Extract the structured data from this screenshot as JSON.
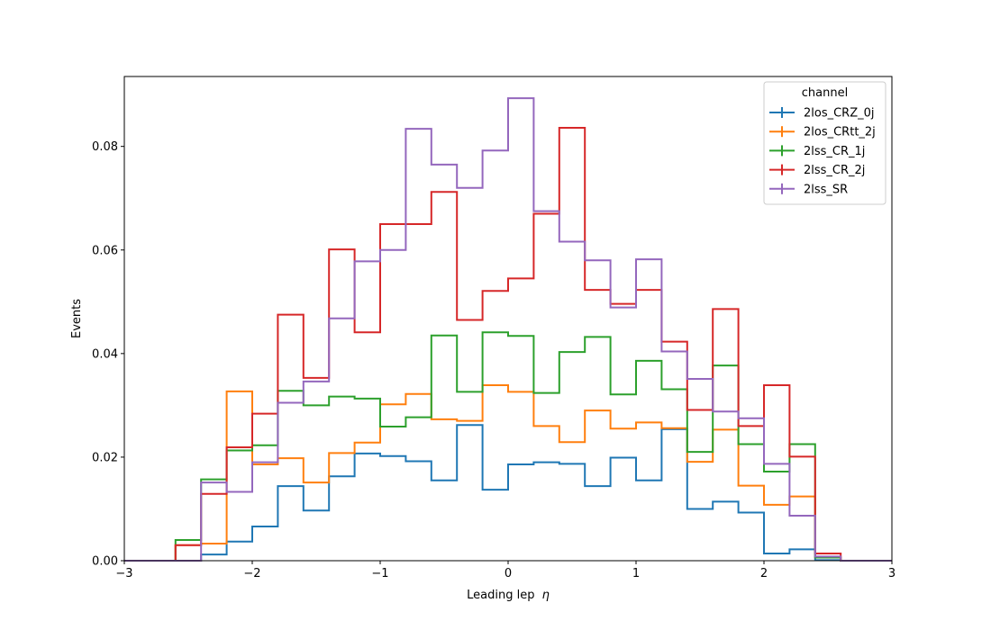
{
  "chart_data": {
    "type": "histogram-step",
    "title": "",
    "xlabel": "Leading lep",
    "xlabel_symbol": "η",
    "ylabel": "Events",
    "xlim": [
      -3,
      3
    ],
    "ylim": [
      0,
      0.0935
    ],
    "xticks": [
      -3,
      -2,
      -1,
      0,
      1,
      2,
      3
    ],
    "xtick_labels": [
      "−3",
      "−2",
      "−1",
      "0",
      "1",
      "2",
      "3"
    ],
    "yticks": [
      0.0,
      0.02,
      0.04,
      0.06,
      0.08
    ],
    "ytick_labels": [
      "0.00",
      "0.02",
      "0.04",
      "0.06",
      "0.08"
    ],
    "grid": false,
    "legend": {
      "title": "channel",
      "placement": "top-right"
    },
    "bin_edges": [
      -3.0,
      -2.8,
      -2.6,
      -2.4,
      -2.2,
      -2.0,
      -1.8,
      -1.6,
      -1.4,
      -1.2,
      -1.0,
      -0.8,
      -0.6,
      -0.4,
      -0.2,
      0.0,
      0.2,
      0.4,
      0.6,
      0.8,
      1.0,
      1.2,
      1.4,
      1.6,
      1.8,
      2.0,
      2.2,
      2.4,
      2.6,
      2.8,
      3.0
    ],
    "series": [
      {
        "name": "2los_CRZ_0j",
        "color": "#1f77b4",
        "values": [
          0,
          0,
          0,
          0.0012,
          0.0037,
          0.0066,
          0.0144,
          0.0097,
          0.0163,
          0.0207,
          0.0202,
          0.0192,
          0.0155,
          0.0262,
          0.0137,
          0.0186,
          0.019,
          0.0187,
          0.0144,
          0.0199,
          0.0155,
          0.0254,
          0.01,
          0.0114,
          0.0093,
          0.0014,
          0.0022,
          0.0001,
          0,
          0
        ]
      },
      {
        "name": "2los_CRtt_2j",
        "color": "#ff7f0e",
        "values": [
          0,
          0,
          0.003,
          0.0033,
          0.0327,
          0.0186,
          0.0198,
          0.0151,
          0.0208,
          0.0228,
          0.0302,
          0.0322,
          0.0273,
          0.027,
          0.0339,
          0.0326,
          0.026,
          0.0229,
          0.029,
          0.0255,
          0.0267,
          0.0256,
          0.0191,
          0.0253,
          0.0145,
          0.0108,
          0.0124,
          0.0006,
          0,
          0
        ]
      },
      {
        "name": "2lss_CR_1j",
        "color": "#2ca02c",
        "values": [
          0,
          0,
          0.004,
          0.0157,
          0.0213,
          0.0223,
          0.0328,
          0.03,
          0.0317,
          0.0313,
          0.0259,
          0.0277,
          0.0435,
          0.0326,
          0.0441,
          0.0434,
          0.0324,
          0.0403,
          0.0432,
          0.0321,
          0.0386,
          0.0331,
          0.021,
          0.0377,
          0.0225,
          0.0172,
          0.0225,
          0.0006,
          0,
          0
        ]
      },
      {
        "name": "2lss_CR_2j",
        "color": "#d62728",
        "values": [
          0,
          0,
          0.003,
          0.0129,
          0.0219,
          0.0284,
          0.0475,
          0.0353,
          0.0601,
          0.0441,
          0.065,
          0.065,
          0.0712,
          0.0465,
          0.0521,
          0.0545,
          0.067,
          0.0836,
          0.0523,
          0.0496,
          0.0523,
          0.0423,
          0.0291,
          0.0486,
          0.026,
          0.0339,
          0.0201,
          0.0014,
          0,
          0
        ]
      },
      {
        "name": "2lss_SR",
        "color": "#9467bd",
        "values": [
          0,
          0,
          0,
          0.0151,
          0.0133,
          0.019,
          0.0305,
          0.0346,
          0.0468,
          0.0578,
          0.06,
          0.0834,
          0.0765,
          0.072,
          0.0792,
          0.0893,
          0.0675,
          0.0616,
          0.058,
          0.0489,
          0.0582,
          0.0404,
          0.0351,
          0.0288,
          0.0275,
          0.0187,
          0.0087,
          0.0008,
          0,
          0
        ]
      }
    ]
  }
}
